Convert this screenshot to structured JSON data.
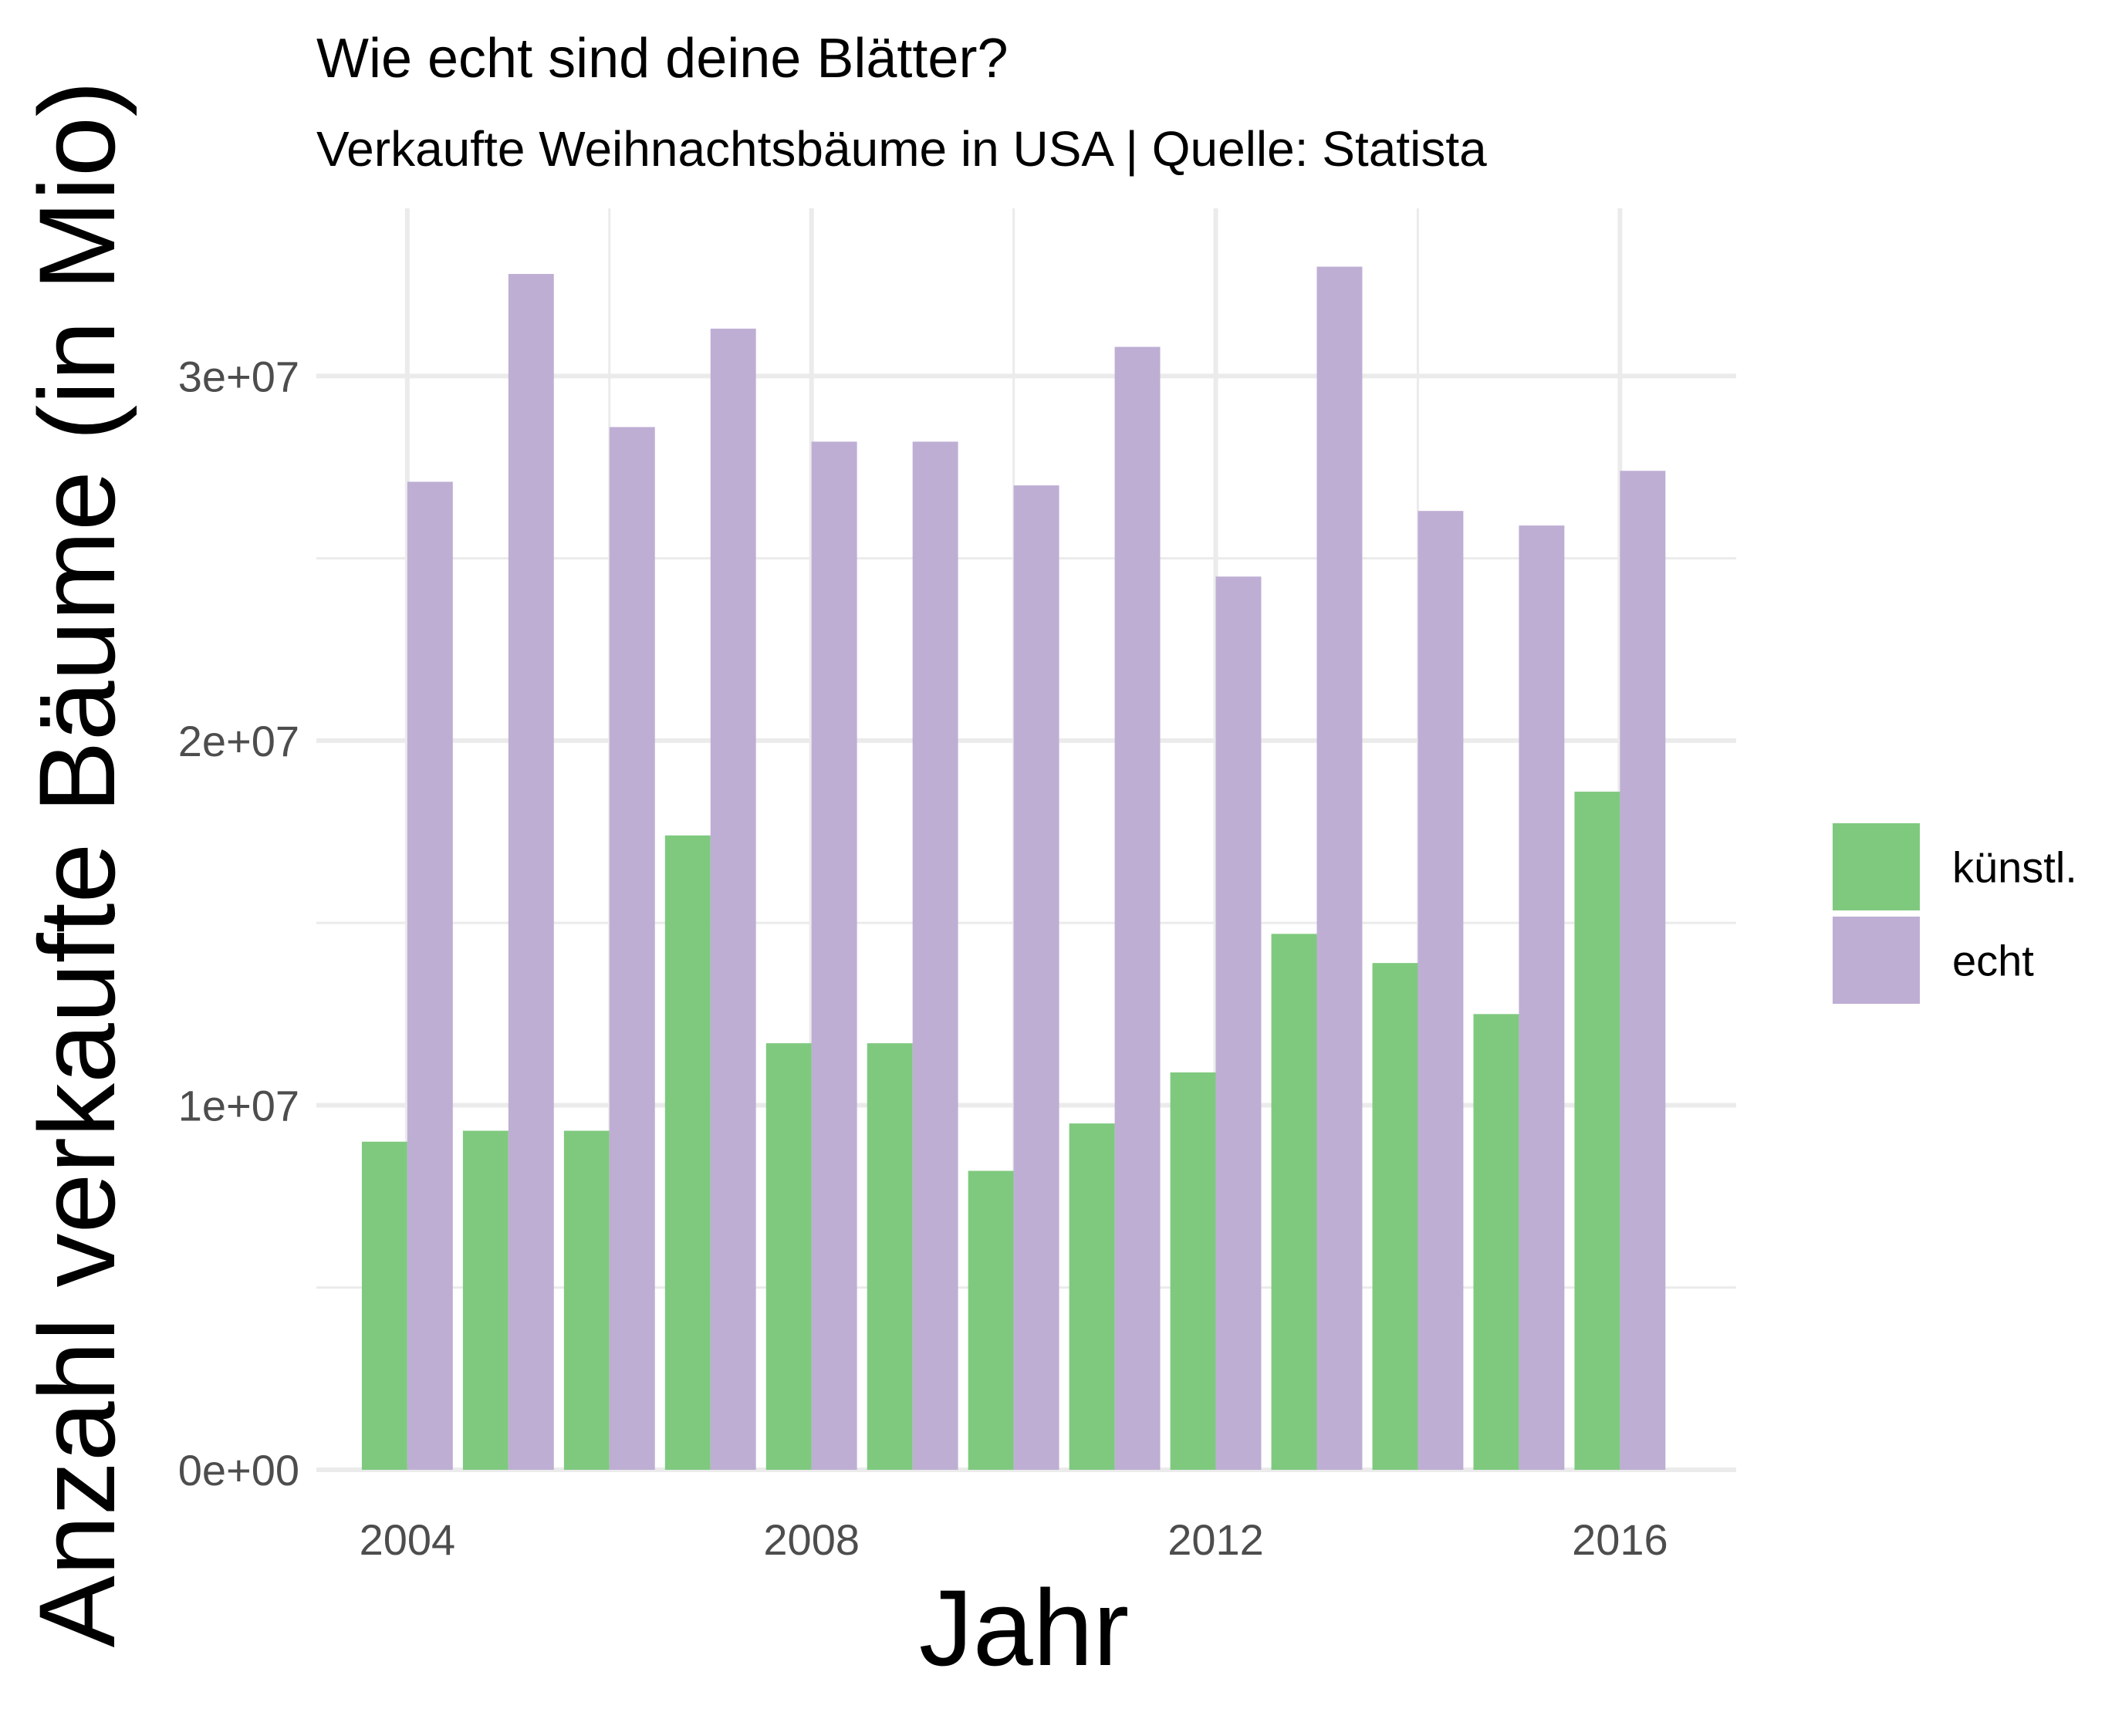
{
  "chart_data": {
    "type": "bar",
    "title": "Wie echt sind deine Blätter?",
    "subtitle": "Verkaufte Weihnachtsbäume in USA | Quelle: Statista",
    "xlabel": "Jahr",
    "ylabel": "Anzahl verkaufte Bäume (in Mio)",
    "x": [
      2004,
      2005,
      2006,
      2007,
      2008,
      2009,
      2010,
      2011,
      2012,
      2013,
      2014,
      2015,
      2016
    ],
    "series": [
      {
        "name": "künstl.",
        "color": "#7fc97f",
        "values": [
          9000000,
          9300000,
          9300000,
          17400000,
          11700000,
          11700000,
          8200000,
          9500000,
          10900000,
          14700000,
          13900000,
          12500000,
          18600000
        ]
      },
      {
        "name": "echt",
        "color": "#beaed4",
        "values": [
          27100000,
          32800000,
          28600000,
          31300000,
          28200000,
          28200000,
          27000000,
          30800000,
          24500000,
          33000000,
          26300000,
          25900000,
          27400000
        ]
      }
    ],
    "xlim": [
      2003.1,
      2017.15
    ],
    "ylim": [
      0,
      34600000
    ],
    "x_ticks": [
      2004,
      2008,
      2012,
      2016
    ],
    "x_tick_labels": [
      "2004",
      "2008",
      "2012",
      "2016"
    ],
    "y_ticks": [
      0,
      10000000,
      20000000,
      30000000
    ],
    "y_tick_labels": [
      "0e+00",
      "1e+07",
      "2e+07",
      "3e+07"
    ],
    "grid": true,
    "legend_position": "right"
  }
}
